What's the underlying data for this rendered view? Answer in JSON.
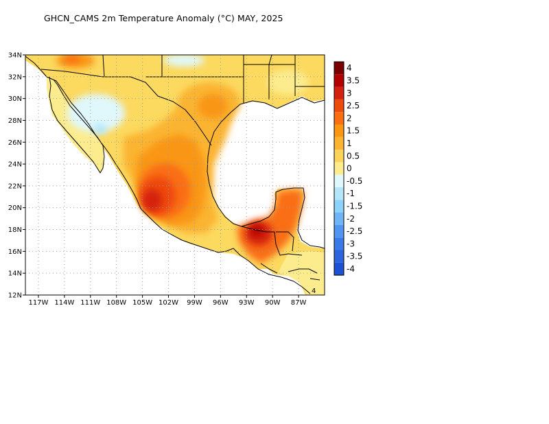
{
  "title": "GHCN_CAMS 2m Temperature Anomaly (°C) MAY, 2025",
  "map": {
    "lat_range": [
      12,
      34
    ],
    "lon_range": [
      -118.5,
      -84
    ],
    "lat_labels": [
      "34N",
      "32N",
      "30N",
      "28N",
      "26N",
      "24N",
      "22N",
      "20N",
      "18N",
      "16N",
      "14N",
      "12N"
    ],
    "lat_values": [
      34,
      32,
      30,
      28,
      26,
      24,
      22,
      20,
      18,
      16,
      14,
      12
    ],
    "lon_labels": [
      "117W",
      "114W",
      "111W",
      "108W",
      "105W",
      "102W",
      "99W",
      "96W",
      "93W",
      "90W",
      "87W"
    ],
    "lon_values": [
      -117,
      -114,
      -111,
      -108,
      -105,
      -102,
      -99,
      -96,
      -93,
      -90,
      -87
    ],
    "grid": "dotted",
    "corner_mark": "4"
  },
  "colorbar": {
    "levels": [
      "4",
      "3.5",
      "3",
      "2.5",
      "2",
      "1.5",
      "1",
      "0.5",
      "0",
      "-0.5",
      "-1",
      "-1.5",
      "-2",
      "-2.5",
      "-3",
      "-3.5",
      "-4"
    ],
    "colors": [
      "#7a0000",
      "#b30000",
      "#d42010",
      "#ee4a0c",
      "#fa6e12",
      "#fa9612",
      "#fbb430",
      "#fbd25a",
      "#fcec8e",
      "#e0f8fc",
      "#b4e6fa",
      "#8cd2fa",
      "#6eb4f6",
      "#5096f0",
      "#3a7ae8",
      "#2c64de",
      "#1e50d2"
    ]
  },
  "colors": {
    "ocean": "#ffffff",
    "border": "#000000",
    "grid": "#9a9a9a"
  }
}
